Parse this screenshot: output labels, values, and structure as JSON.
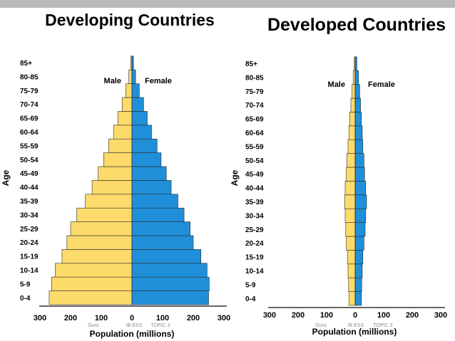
{
  "chart_data": [
    {
      "type": "bar",
      "title": "Developing Countries",
      "ylabel": "Age",
      "xlabel": "Population (millions)",
      "categories": [
        "0-4",
        "5-9",
        "10-14",
        "15-19",
        "20-24",
        "25-29",
        "30-34",
        "35-39",
        "40-44",
        "45-49",
        "50-54",
        "55-59",
        "60-64",
        "65-69",
        "70-74",
        "75-79",
        "80-85",
        "85+"
      ],
      "series": [
        {
          "name": "Male",
          "color": "#fcdb6a",
          "values": [
            270,
            262,
            250,
            228,
            212,
            200,
            180,
            152,
            130,
            110,
            92,
            76,
            60,
            46,
            32,
            20,
            10,
            4
          ]
        },
        {
          "name": "Female",
          "color": "#1f8fd9",
          "values": [
            250,
            252,
            245,
            225,
            200,
            190,
            170,
            150,
            128,
            112,
            95,
            82,
            64,
            50,
            38,
            24,
            12,
            5
          ]
        }
      ],
      "xlim": [
        -300,
        300
      ],
      "xticks": [
        -300,
        -200,
        -100,
        0,
        100,
        200,
        300
      ],
      "xtick_labels": [
        "300",
        "200",
        "100",
        "0",
        "100",
        "200",
        "300"
      ],
      "credit": [
        "Guru",
        "IB ESS",
        "TOPIC 3"
      ]
    },
    {
      "type": "bar",
      "title": "Developed Countries",
      "ylabel": "Age",
      "xlabel": "Population (millions)",
      "categories": [
        "0-4",
        "5-9",
        "10-14",
        "15-19",
        "20-24",
        "25-29",
        "30-34",
        "35-39",
        "40-44",
        "45-49",
        "50-54",
        "55-59",
        "60-64",
        "65-69",
        "70-74",
        "75-79",
        "80-85",
        "85+"
      ],
      "series": [
        {
          "name": "Male",
          "color": "#fcdb6a",
          "values": [
            22,
            23,
            25,
            27,
            31,
            33,
            35,
            37,
            35,
            31,
            29,
            25,
            22,
            19,
            15,
            11,
            7,
            3
          ]
        },
        {
          "name": "Female",
          "color": "#1f8fd9",
          "values": [
            22,
            23,
            25,
            27,
            31,
            35,
            37,
            40,
            37,
            33,
            31,
            27,
            25,
            22,
            19,
            16,
            12,
            6
          ]
        }
      ],
      "xlim": [
        -300,
        300
      ],
      "xticks": [
        -300,
        -200,
        -100,
        0,
        100,
        200,
        300
      ],
      "xtick_labels": [
        "300",
        "200",
        "100",
        "0",
        "100",
        "200",
        "300"
      ],
      "credit": [
        "Guru",
        "IB ESS",
        "TOPIC 3"
      ]
    }
  ]
}
